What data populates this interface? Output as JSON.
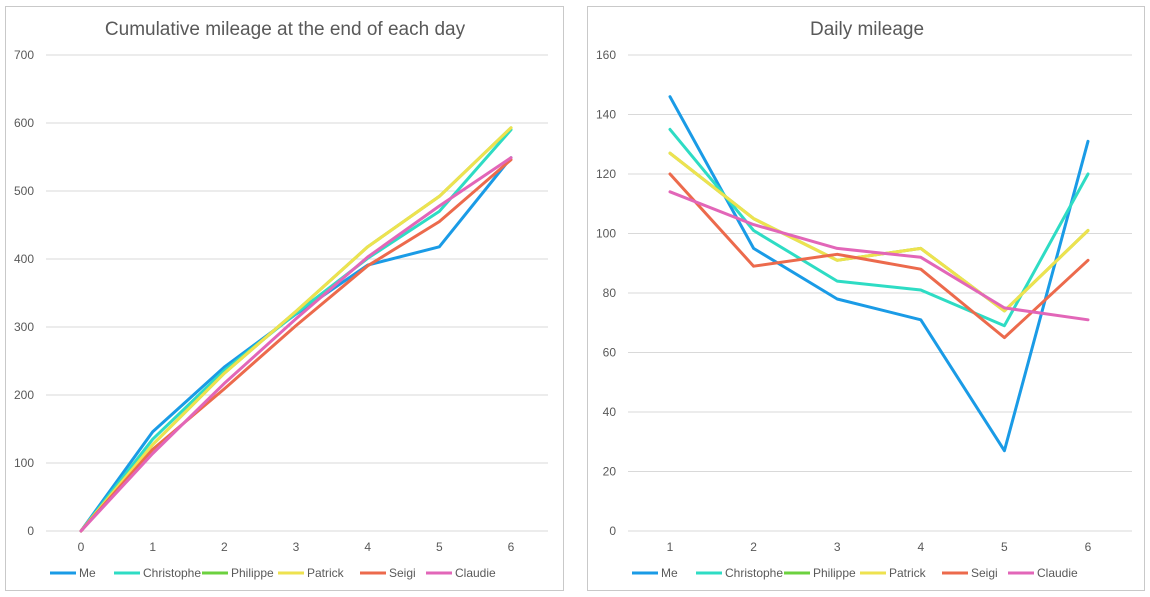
{
  "colors": {
    "Me": "#1a9be6",
    "Christophe": "#2edcc4",
    "Philippe": "#6cd13f",
    "Patrick": "#eee24f",
    "Seigi": "#ec6a4c",
    "Claudie": "#e266b8"
  },
  "chart_data": [
    {
      "type": "line",
      "title": "Cumulative mileage at the end of each day",
      "xlabel": "",
      "ylabel": "",
      "x": [
        0,
        1,
        2,
        3,
        4,
        5,
        6
      ],
      "ylim": [
        0,
        700
      ],
      "yticks": [
        0,
        100,
        200,
        300,
        400,
        500,
        600,
        700
      ],
      "grid": true,
      "legend": "bottom",
      "series": [
        {
          "name": "Me",
          "values": [
            0,
            146,
            241,
            319,
            391,
            418,
            549
          ]
        },
        {
          "name": "Christophe",
          "values": [
            0,
            135,
            236,
            320,
            401,
            470,
            590
          ]
        },
        {
          "name": "Philippe",
          "values": [
            0,
            127,
            232,
            323,
            418,
            492,
            593
          ]
        },
        {
          "name": "Patrick",
          "values": [
            0,
            127,
            232,
            323,
            418,
            492,
            593
          ]
        },
        {
          "name": "Seigi",
          "values": [
            0,
            120,
            209,
            302,
            390,
            455,
            546
          ]
        },
        {
          "name": "Claudie",
          "values": [
            0,
            114,
            217,
            312,
            403,
            478,
            549
          ]
        }
      ]
    },
    {
      "type": "line",
      "title": "Daily mileage",
      "xlabel": "",
      "ylabel": "",
      "x": [
        1,
        2,
        3,
        4,
        5,
        6
      ],
      "ylim": [
        0,
        160
      ],
      "yticks": [
        0,
        20,
        40,
        60,
        80,
        100,
        120,
        140,
        160
      ],
      "grid": true,
      "legend": "bottom",
      "series": [
        {
          "name": "Me",
          "values": [
            146,
            95,
            78,
            71,
            27,
            131
          ]
        },
        {
          "name": "Christophe",
          "values": [
            135,
            101,
            84,
            81,
            69,
            120
          ]
        },
        {
          "name": "Philippe",
          "values": [
            127,
            105,
            91,
            95,
            74,
            101
          ]
        },
        {
          "name": "Patrick",
          "values": [
            127,
            105,
            91,
            95,
            74,
            101
          ]
        },
        {
          "name": "Seigi",
          "values": [
            120,
            89,
            93,
            88,
            65,
            91
          ]
        },
        {
          "name": "Claudie",
          "values": [
            114,
            103,
            95,
            92,
            75,
            71
          ]
        }
      ]
    }
  ]
}
